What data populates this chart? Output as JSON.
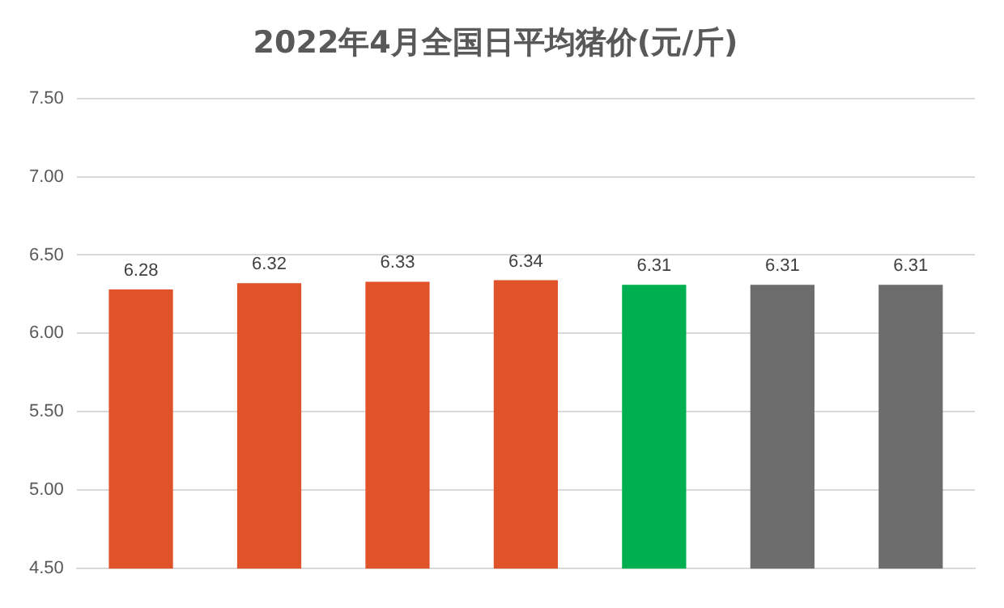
{
  "chart_data": {
    "type": "bar",
    "title": "2022年4月全国日平均猪价(元/斤)",
    "categories": [
      null,
      null,
      null,
      null,
      null,
      null,
      null
    ],
    "values": [
      6.28,
      6.32,
      6.33,
      6.34,
      6.31,
      6.31,
      6.31
    ],
    "colors": [
      "#e0522a",
      "#e0522a",
      "#e0522a",
      "#e0522a",
      "#00b050",
      "#6d6d6d",
      "#6d6d6d"
    ],
    "ylim": [
      4.5,
      7.5
    ],
    "yticks": [
      {
        "value": 4.5,
        "label": "4.50"
      },
      {
        "value": 5,
        "label": "5.00"
      },
      {
        "value": 5.5,
        "label": "5.50"
      },
      {
        "value": 6,
        "label": "6.00"
      },
      {
        "value": 6.5,
        "label": "6.50"
      },
      {
        "value": 7,
        "label": "7.00"
      },
      {
        "value": 7.5,
        "label": "7.50"
      }
    ],
    "grid": "y",
    "data_labels": true,
    "legend": false
  }
}
